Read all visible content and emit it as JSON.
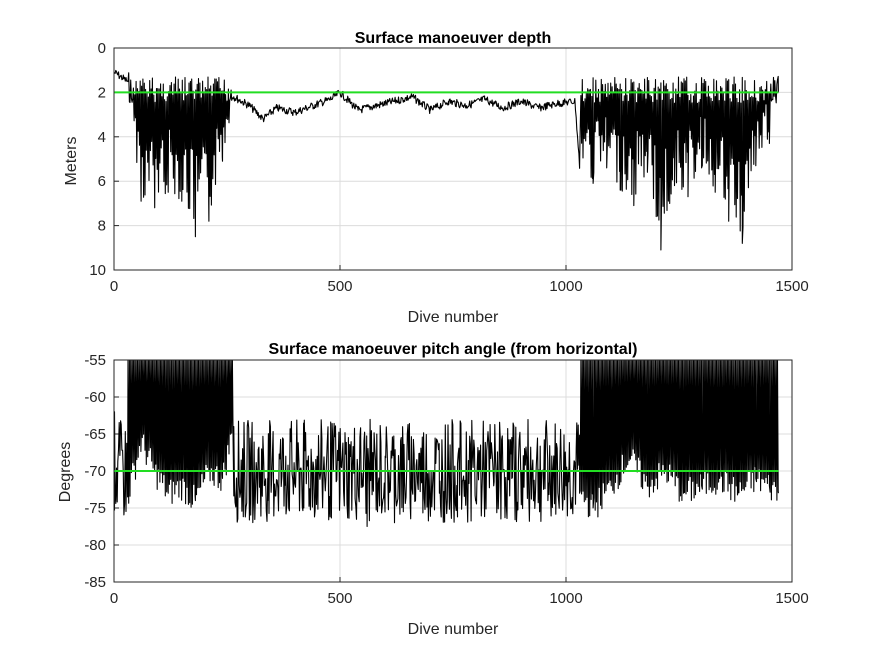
{
  "chart_data": [
    {
      "type": "line",
      "title": "Surface manoeuver depth",
      "xlabel": "Dive number",
      "ylabel": "Meters",
      "xlim": [
        0,
        1500
      ],
      "ylim": [
        0,
        10
      ],
      "y_reversed": true,
      "xticks": [
        0,
        500,
        1000,
        1500
      ],
      "yticks": [
        0,
        2,
        4,
        6,
        8,
        10
      ],
      "grid": true,
      "series": [
        {
          "x": [
            1,
            30,
            60,
            90,
            120,
            150,
            180,
            210,
            240,
            265,
            300,
            330,
            360,
            400,
            440,
            480,
            500,
            540,
            580,
            620,
            660,
            700,
            740,
            780,
            820,
            860,
            900,
            940,
            980,
            1020,
            1030,
            1060,
            1090,
            1120,
            1150,
            1180,
            1210,
            1240,
            1270,
            1300,
            1330,
            1360,
            1390,
            1420,
            1450,
            1470
          ],
          "y": [
            1.1,
            1.5,
            6.9,
            7.2,
            6.5,
            6.9,
            8.5,
            7.8,
            5.1,
            2.2,
            2.6,
            3.2,
            2.7,
            2.9,
            2.6,
            2.3,
            2.0,
            2.8,
            2.6,
            2.4,
            2.2,
            2.8,
            2.4,
            2.6,
            2.3,
            2.7,
            2.4,
            2.7,
            2.5,
            2.4,
            5.3,
            6.1,
            5.4,
            6.4,
            7.1,
            5.6,
            9.1,
            6.2,
            6.7,
            5.4,
            6.5,
            7.8,
            8.8,
            5.3,
            4.3,
            2.0
          ],
          "color": "#000000"
        },
        {
          "x": [
            0,
            1470
          ],
          "y": [
            2,
            2
          ],
          "color": "#22dd22"
        }
      ]
    },
    {
      "type": "line",
      "title": "Surface manoeuver pitch angle (from horizontal)",
      "xlabel": "Dive number",
      "ylabel": "Degrees",
      "xlim": [
        0,
        1500
      ],
      "ylim": [
        -85,
        -55
      ],
      "xticks": [
        0,
        500,
        1000,
        1500
      ],
      "yticks": [
        -55,
        -60,
        -65,
        -70,
        -75,
        -80,
        -85
      ],
      "grid": true,
      "series": [
        {
          "x": [
            1,
            30,
            60,
            90,
            120,
            150,
            180,
            210,
            240,
            265,
            300,
            340,
            380,
            420,
            460,
            500,
            540,
            560,
            600,
            640,
            680,
            720,
            760,
            800,
            840,
            880,
            920,
            960,
            1000,
            1030,
            1060,
            1100,
            1140,
            1180,
            1220,
            1260,
            1300,
            1340,
            1380,
            1420,
            1450,
            1470
          ],
          "y": [
            -62,
            -73.5,
            -66,
            -70,
            -73,
            -72,
            -74,
            -70,
            -71,
            -64,
            -72,
            -74,
            -68,
            -75,
            -70,
            -73,
            -72,
            -77.5,
            -68,
            -75.5,
            -71,
            -73,
            -69,
            -74,
            -72,
            -71,
            -73,
            -74,
            -72,
            -73,
            -75,
            -72,
            -68,
            -72,
            -70,
            -73,
            -72,
            -71,
            -73,
            -71,
            -72,
            -73
          ],
          "color": "#000000"
        },
        {
          "x": [
            0,
            1470
          ],
          "y": [
            -70,
            -70
          ],
          "color": "#22dd22"
        }
      ]
    }
  ]
}
